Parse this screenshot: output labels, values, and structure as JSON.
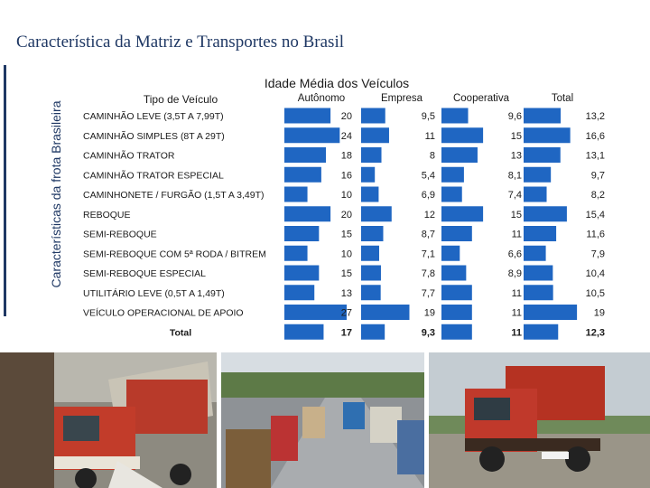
{
  "page": {
    "title": "Característica da Matriz e Transportes no Brasil",
    "side_label": "Características da frota Brasileira"
  },
  "chart_data": {
    "type": "bar",
    "title": "Idade Média dos Veículos",
    "category_header": "Tipo de Veículo",
    "categories": [
      "CAMINHÃO LEVE (3,5T A 7,99T)",
      "CAMINHÃO SIMPLES (8T A 29T)",
      "CAMINHÃO TRATOR",
      "CAMINHÃO TRATOR ESPECIAL",
      "CAMINHONETE / FURGÃO (1,5T A 3,49T)",
      "REBOQUE",
      "SEMI-REBOQUE",
      "SEMI-REBOQUE COM 5ª RODA / BITREM",
      "SEMI-REBOQUE ESPECIAL",
      "UTILITÁRIO LEVE (0,5T A 1,49T)",
      "VEÍCULO OPERACIONAL DE APOIO",
      "Total"
    ],
    "series": [
      {
        "name": "Autônomo",
        "values": [
          20,
          24,
          18,
          16,
          10,
          20,
          15,
          10,
          15,
          13,
          27,
          17
        ],
        "labels": [
          "20",
          "24",
          "18",
          "16",
          "10",
          "20",
          "15",
          "10",
          "15",
          "13",
          "27",
          "17"
        ]
      },
      {
        "name": "Empresa",
        "values": [
          9.5,
          11,
          8,
          5.4,
          6.9,
          12,
          8.7,
          7.1,
          7.8,
          7.7,
          19,
          9.3
        ],
        "labels": [
          "9,5",
          "11",
          "8",
          "5,4",
          "6,9",
          "12",
          "8,7",
          "7,1",
          "7,8",
          "7,7",
          "19",
          "9,3"
        ]
      },
      {
        "name": "Cooperativa",
        "values": [
          9.6,
          15,
          13,
          8.1,
          7.4,
          15,
          11,
          6.6,
          8.9,
          11,
          11,
          11
        ],
        "labels": [
          "9,6",
          "15",
          "13",
          "8,1",
          "7,4",
          "15",
          "11",
          "6,6",
          "8,9",
          "11",
          "11",
          "11"
        ]
      },
      {
        "name": "Total",
        "values": [
          13.2,
          16.6,
          13.1,
          9.7,
          8.2,
          15.4,
          11.6,
          7.9,
          10.4,
          10.5,
          19,
          12.3
        ],
        "labels": [
          "13,2",
          "16,6",
          "13,1",
          "9,7",
          "8,2",
          "15,4",
          "11,6",
          "7,9",
          "10,4",
          "10,5",
          "19",
          "12,3"
        ]
      }
    ],
    "bar_color": "#1f66c2",
    "grid": false,
    "legend": "none"
  }
}
